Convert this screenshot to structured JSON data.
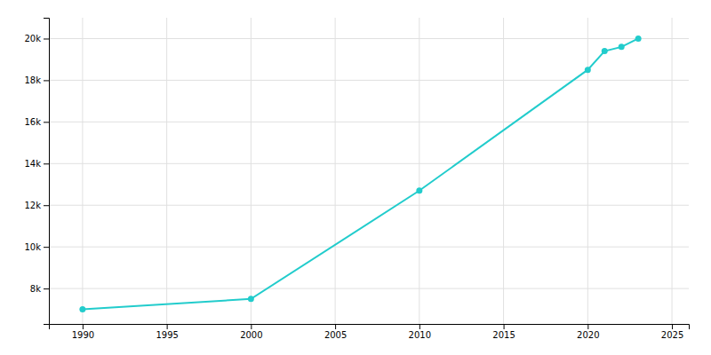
{
  "chart_data": {
    "type": "line",
    "x": [
      1990,
      2000,
      2010,
      2020,
      2021,
      2022,
      2023
    ],
    "values": [
      7000,
      7500,
      12700,
      18500,
      19400,
      19600,
      20000
    ],
    "color": "#22CCCC",
    "marker": "circle",
    "xlim": [
      1988,
      2026
    ],
    "ylim": [
      6300,
      21000
    ],
    "xticks": [
      1990,
      1995,
      2000,
      2005,
      2010,
      2015,
      2020,
      2025
    ],
    "yticks": [
      {
        "value": 8000,
        "label": "8k"
      },
      {
        "value": 10000,
        "label": "10k"
      },
      {
        "value": 12000,
        "label": "12k"
      },
      {
        "value": 14000,
        "label": "14k"
      },
      {
        "value": 16000,
        "label": "16k"
      },
      {
        "value": 18000,
        "label": "18k"
      },
      {
        "value": 20000,
        "label": "20k"
      }
    ],
    "grid": true
  }
}
